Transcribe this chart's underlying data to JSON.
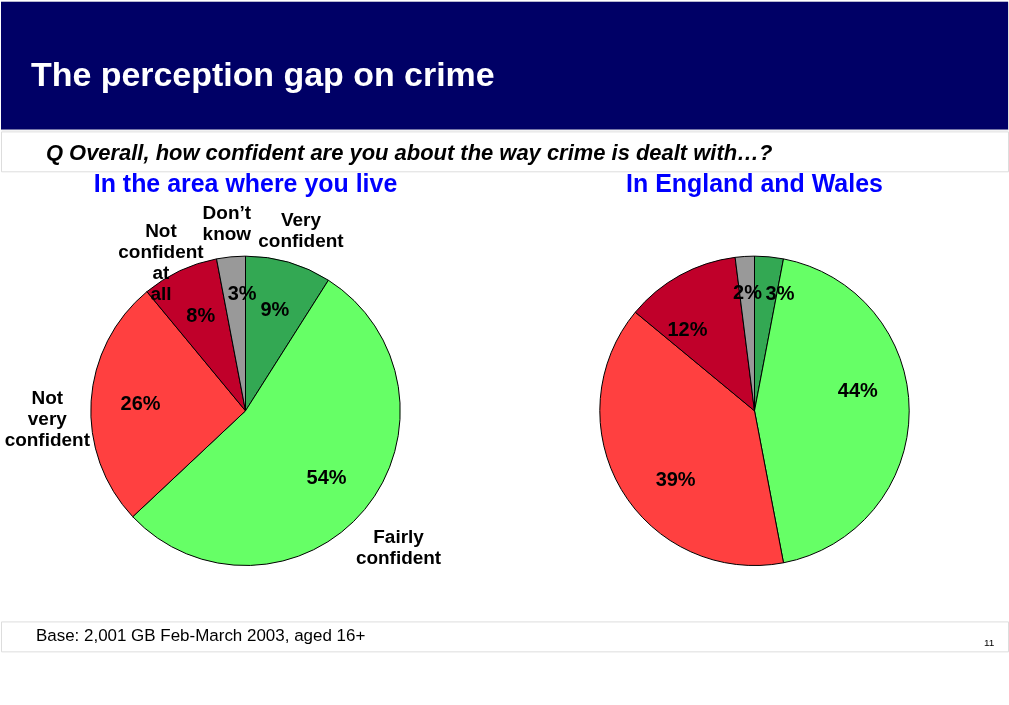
{
  "chart_data": [
    {
      "type": "pie",
      "title": "In the area where you live",
      "annotations": [
        "The perception gap on crime",
        "Q   Overall, how confident are you about the way crime is dealt with…?",
        "Base: 2,001 GB Feb-March 2003, aged 16+",
        "11"
      ],
      "categories": [
        "Very confident",
        "Fairly confident",
        "Not very confident",
        "Not confident at all",
        "Don’t know"
      ],
      "values": [
        9,
        54,
        26,
        8,
        3
      ],
      "value_labels": [
        "9%",
        "54%",
        "26%",
        "8%",
        "3%"
      ],
      "colors": [
        "#33a853",
        "#66ff66",
        "#ff4040",
        "#c0002a",
        "#999999"
      ],
      "legend": false
    },
    {
      "type": "pie",
      "title": "In England and Wales",
      "categories": [
        null,
        null,
        null,
        null,
        null
      ],
      "values": [
        3,
        44,
        39,
        12,
        2
      ],
      "value_labels": [
        "3%",
        "44%",
        "39%",
        "12%",
        "2%"
      ],
      "colors": [
        "#33a853",
        "#66ff66",
        "#ff4040",
        "#c0002a",
        "#999999"
      ],
      "legend": false
    }
  ]
}
